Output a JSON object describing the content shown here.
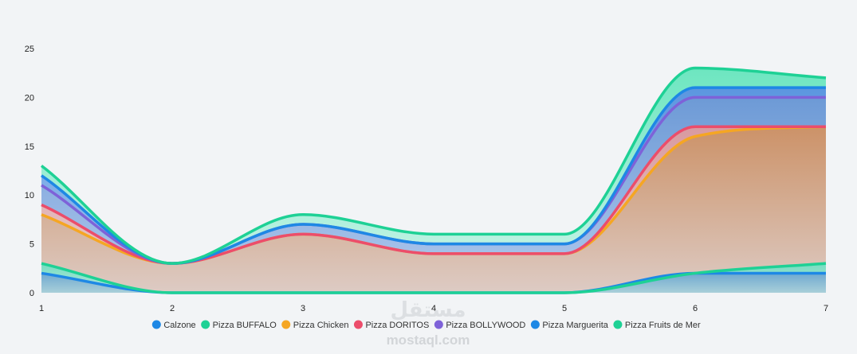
{
  "chart_data": {
    "type": "area",
    "stacked": true,
    "smooth": true,
    "title": "",
    "xlabel": "",
    "ylabel": "",
    "x": [
      1,
      2,
      3,
      4,
      5,
      6,
      7
    ],
    "x_tick_labels": [
      "1",
      "2",
      "3",
      "4",
      "5",
      "6",
      "7"
    ],
    "ylim": [
      0,
      25
    ],
    "y_ticks": [
      0,
      5,
      10,
      15,
      20,
      25
    ],
    "y_tick_labels": [
      "0",
      "5",
      "10",
      "15",
      "20",
      "25"
    ],
    "grid": false,
    "legend_position": "bottom",
    "series": [
      {
        "name": "Calzone",
        "values": [
          2,
          0,
          0,
          0,
          0,
          2,
          2
        ],
        "color": "#1e88e5"
      },
      {
        "name": "Pizza BUFFALO",
        "values": [
          1,
          0,
          0,
          0,
          0,
          0,
          1
        ],
        "color": "#1ed195"
      },
      {
        "name": "Pizza Chicken",
        "values": [
          5,
          3,
          6,
          4,
          4,
          14,
          14
        ],
        "color": "#f5a623"
      },
      {
        "name": "Pizza DORITOS",
        "values": [
          1,
          0,
          0,
          0,
          0,
          1,
          0
        ],
        "color": "#ec4d6b"
      },
      {
        "name": "Pizza BOLLYWOOD",
        "values": [
          2,
          0,
          1,
          1,
          1,
          3,
          3
        ],
        "color": "#7e62d8"
      },
      {
        "name": "Pizza Marguerita",
        "values": [
          1,
          0,
          0,
          0,
          0,
          1,
          1
        ],
        "color": "#1e88e5"
      },
      {
        "name": "Pizza Fruits de Mer",
        "values": [
          1,
          0,
          1,
          1,
          1,
          2,
          1
        ],
        "color": "#1ed195"
      }
    ]
  },
  "watermark": {
    "arabic": "مستقل",
    "latin": "mostaql.com"
  }
}
